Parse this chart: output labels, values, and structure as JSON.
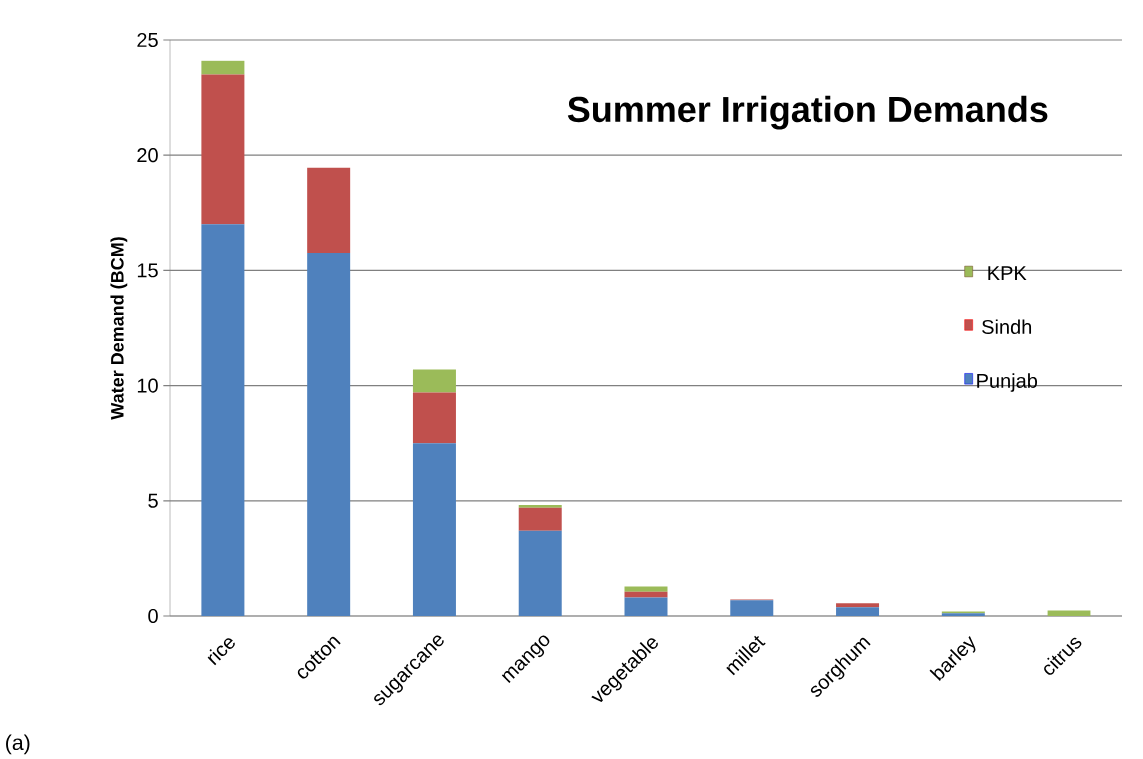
{
  "chart_data": {
    "type": "bar",
    "stacked": true,
    "title": "Summer Irrigation Demands",
    "ylabel": "Water Demand (BCM)",
    "categories": [
      "rice",
      "cotton",
      "sugarcane",
      "mango",
      "vegetable",
      "millet",
      "sorghum",
      "barley",
      "citrus"
    ],
    "series": [
      {
        "name": "Punjab",
        "color": "#4f81bd",
        "values": [
          17.0,
          15.75,
          7.5,
          3.7,
          0.8,
          0.68,
          0.38,
          0.12,
          0
        ]
      },
      {
        "name": "Sindh",
        "color": "#c0504d",
        "values": [
          6.5,
          3.7,
          2.2,
          1.0,
          0.25,
          0.04,
          0.17,
          0,
          0
        ]
      },
      {
        "name": "KPK",
        "color": "#9bbb59",
        "values": [
          0.6,
          0,
          1.0,
          0.12,
          0.23,
          0,
          0,
          0.07,
          0.24
        ]
      }
    ],
    "ylim": [
      0,
      25
    ],
    "yticks": [
      0,
      5,
      10,
      15,
      20,
      25
    ],
    "grid": "y",
    "legend": "right",
    "annotations": [
      "(a)"
    ]
  }
}
